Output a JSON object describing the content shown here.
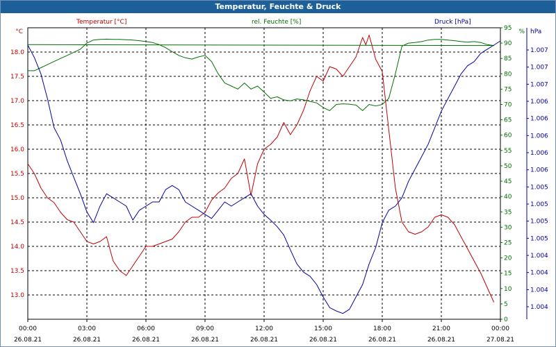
{
  "window": {
    "title": "Temperatur, Feuchte & Druck"
  },
  "chart_data": {
    "type": "line",
    "x_ticks": [
      {
        "time": "00:00",
        "date": "26.08.21"
      },
      {
        "time": "03:00",
        "date": "26.08.21"
      },
      {
        "time": "06:00",
        "date": "26.08.21"
      },
      {
        "time": "09:00",
        "date": "26.08.21"
      },
      {
        "time": "12:00",
        "date": "26.08.21"
      },
      {
        "time": "15:00",
        "date": "26.08.21"
      },
      {
        "time": "18:00",
        "date": "26.08.21"
      },
      {
        "time": "21:00",
        "date": "26.08.21"
      },
      {
        "time": "00:00",
        "date": "27.08.21"
      }
    ],
    "xlim": [
      "26.08.21 00:00",
      "27.08.21 00:00"
    ],
    "grid": true,
    "axes": {
      "temperature": {
        "label": "Temperatur [°C]",
        "unit": "°C",
        "color": "#c00000",
        "ylim": [
          12.5,
          18.5
        ],
        "ticks": [
          "18.0",
          "17.5",
          "17.0",
          "16.5",
          "16.0",
          "15.5",
          "15.0",
          "14.5",
          "14.0",
          "13.5",
          "13.0"
        ]
      },
      "humidity": {
        "label": "rel. Feuchte [%]",
        "unit": "%",
        "color": "#007000",
        "ylim": [
          0,
          95
        ],
        "ticks": [
          "95",
          "90",
          "85",
          "80",
          "75",
          "70",
          "65",
          "60",
          "55",
          "50",
          "45",
          "40",
          "35",
          "30",
          "25",
          "20",
          "15",
          "10",
          "5",
          "0"
        ]
      },
      "pressure": {
        "label": "Druck [hPa]",
        "unit": "hPa",
        "color": "#0000a0",
        "ylim": [
          1003.78,
          1007.31
        ],
        "ticks": [
          "1.007",
          "1.007",
          "1.007",
          "1.006",
          "1.006",
          "1.006",
          "1.006",
          "1.006",
          "1.005",
          "1.005",
          "1.005",
          "1.005",
          "1.004",
          "1.004",
          "1.004",
          "1.004"
        ]
      }
    },
    "series": [
      {
        "name": "Temperatur [°C]",
        "axis": "temperature",
        "color": "#c00000",
        "x": [
          "00:00",
          "00:20",
          "00:40",
          "01:00",
          "01:20",
          "01:40",
          "02:00",
          "02:20",
          "02:40",
          "03:00",
          "03:20",
          "03:40",
          "04:00",
          "04:20",
          "04:40",
          "05:00",
          "05:20",
          "05:40",
          "06:00",
          "06:20",
          "06:40",
          "07:00",
          "07:20",
          "07:40",
          "08:00",
          "08:20",
          "08:40",
          "09:00",
          "09:20",
          "09:40",
          "10:00",
          "10:20",
          "10:40",
          "11:00",
          "11:20",
          "11:40",
          "12:00",
          "12:20",
          "12:40",
          "13:00",
          "13:20",
          "13:40",
          "14:00",
          "14:20",
          "14:40",
          "15:00",
          "15:20",
          "15:40",
          "16:00",
          "16:20",
          "16:40",
          "17:00",
          "17:10",
          "17:20",
          "17:40",
          "18:00",
          "18:20",
          "18:40",
          "19:00",
          "19:20",
          "19:40",
          "20:00",
          "20:20",
          "20:40",
          "21:00",
          "21:20",
          "21:40",
          "22:00",
          "22:20",
          "22:40",
          "23:00",
          "23:20",
          "23:40"
        ],
        "y": [
          15.7,
          15.5,
          15.2,
          15.0,
          14.9,
          14.7,
          14.55,
          14.5,
          14.3,
          14.1,
          14.05,
          14.1,
          14.2,
          13.7,
          13.5,
          13.4,
          13.6,
          13.8,
          14.0,
          14.0,
          14.05,
          14.1,
          14.15,
          14.3,
          14.5,
          14.6,
          14.6,
          14.7,
          14.95,
          15.1,
          15.2,
          15.4,
          15.5,
          15.8,
          15.05,
          15.7,
          16.0,
          16.1,
          16.25,
          16.55,
          16.3,
          16.5,
          16.8,
          17.2,
          17.5,
          17.4,
          17.7,
          17.65,
          17.5,
          17.7,
          17.9,
          18.3,
          18.15,
          18.35,
          17.85,
          17.6,
          16.4,
          15.2,
          14.5,
          14.3,
          14.25,
          14.3,
          14.4,
          14.6,
          14.65,
          14.6,
          14.45,
          14.2,
          13.95,
          13.7,
          13.45,
          13.15,
          12.85
        ]
      },
      {
        "name": "rel. Feuchte [%]",
        "axis": "humidity",
        "color": "#007000",
        "x": [
          "00:00",
          "00:20",
          "00:40",
          "01:00",
          "01:20",
          "01:40",
          "02:00",
          "02:20",
          "02:40",
          "03:00",
          "03:20",
          "03:40",
          "04:00",
          "04:20",
          "04:40",
          "05:00",
          "05:20",
          "05:40",
          "06:00",
          "06:20",
          "06:40",
          "07:00",
          "07:20",
          "07:40",
          "08:00",
          "08:20",
          "08:40",
          "09:00",
          "09:20",
          "09:40",
          "10:00",
          "10:20",
          "10:40",
          "11:00",
          "11:20",
          "11:40",
          "12:00",
          "12:20",
          "12:40",
          "13:00",
          "13:20",
          "13:40",
          "14:00",
          "14:20",
          "14:40",
          "15:00",
          "15:20",
          "15:40",
          "16:00",
          "16:20",
          "16:40",
          "17:00",
          "17:20",
          "17:40",
          "18:00",
          "18:20",
          "18:40",
          "19:00",
          "19:20",
          "19:40",
          "20:00",
          "20:20",
          "20:40",
          "21:00",
          "21:20",
          "21:40",
          "22:00",
          "22:20",
          "22:40",
          "23:00",
          "23:20",
          "23:40",
          "00:00"
        ],
        "y": [
          81,
          81,
          82,
          83,
          84,
          85,
          86,
          87,
          88,
          90,
          91,
          91.2,
          91.3,
          91.2,
          91.2,
          91.1,
          91,
          90.8,
          90.5,
          90.2,
          89.5,
          88.5,
          87.2,
          86,
          85.2,
          84.8,
          85.5,
          86,
          84,
          80,
          77,
          76,
          75,
          77,
          75,
          76,
          74,
          72,
          72.5,
          71.5,
          71.2,
          71.8,
          71.5,
          71,
          70.5,
          69,
          68,
          70,
          70.2,
          70.1,
          69.8,
          68,
          70,
          69.5,
          70,
          72,
          80,
          89,
          90,
          90.2,
          90.5,
          91,
          91.2,
          91.2,
          91,
          90.8,
          90.5,
          90.3,
          90.5,
          90.2,
          89.5,
          89.2,
          89.5
        ]
      },
      {
        "name": "Druck [hPa]",
        "axis": "pressure",
        "color": "#0000a0",
        "x": [
          "00:00",
          "00:20",
          "00:40",
          "01:00",
          "01:20",
          "01:40",
          "02:00",
          "02:20",
          "02:40",
          "03:00",
          "03:20",
          "03:40",
          "04:00",
          "04:20",
          "04:40",
          "05:00",
          "05:20",
          "05:40",
          "06:00",
          "06:20",
          "06:40",
          "07:00",
          "07:20",
          "07:40",
          "08:00",
          "08:20",
          "08:40",
          "09:00",
          "09:20",
          "09:40",
          "10:00",
          "10:20",
          "10:40",
          "11:00",
          "11:20",
          "11:40",
          "12:00",
          "12:20",
          "12:40",
          "13:00",
          "13:20",
          "13:40",
          "14:00",
          "14:20",
          "14:40",
          "15:00",
          "15:20",
          "15:40",
          "16:00",
          "16:20",
          "16:40",
          "17:00",
          "17:20",
          "17:40",
          "18:00",
          "18:20",
          "18:40",
          "19:00",
          "19:20",
          "19:40",
          "20:00",
          "20:20",
          "20:40",
          "21:00",
          "21:20",
          "21:40",
          "22:00",
          "22:20",
          "22:40",
          "23:00",
          "23:20",
          "23:40",
          "24:00"
        ],
        "y": [
          1007.1,
          1006.95,
          1006.75,
          1006.45,
          1006.1,
          1005.95,
          1005.7,
          1005.5,
          1005.3,
          1005.08,
          1004.95,
          1005.15,
          1005.3,
          1005.25,
          1005.2,
          1005.15,
          1004.98,
          1005.1,
          1005.15,
          1005.2,
          1005.2,
          1005.35,
          1005.4,
          1005.35,
          1005.2,
          1005.15,
          1005.1,
          1005.05,
          1005.0,
          1005.1,
          1005.2,
          1005.15,
          1005.2,
          1005.25,
          1005.3,
          1005.15,
          1005.05,
          1004.98,
          1004.9,
          1004.8,
          1004.62,
          1004.45,
          1004.35,
          1004.3,
          1004.2,
          1004.05,
          1003.92,
          1003.88,
          1003.85,
          1003.9,
          1004.05,
          1004.2,
          1004.45,
          1004.65,
          1004.95,
          1005.1,
          1005.15,
          1005.25,
          1005.45,
          1005.6,
          1005.75,
          1005.9,
          1006.1,
          1006.3,
          1006.45,
          1006.6,
          1006.75,
          1006.85,
          1006.9,
          1007.0,
          1007.05,
          1007.1,
          1007.15
        ]
      }
    ]
  }
}
